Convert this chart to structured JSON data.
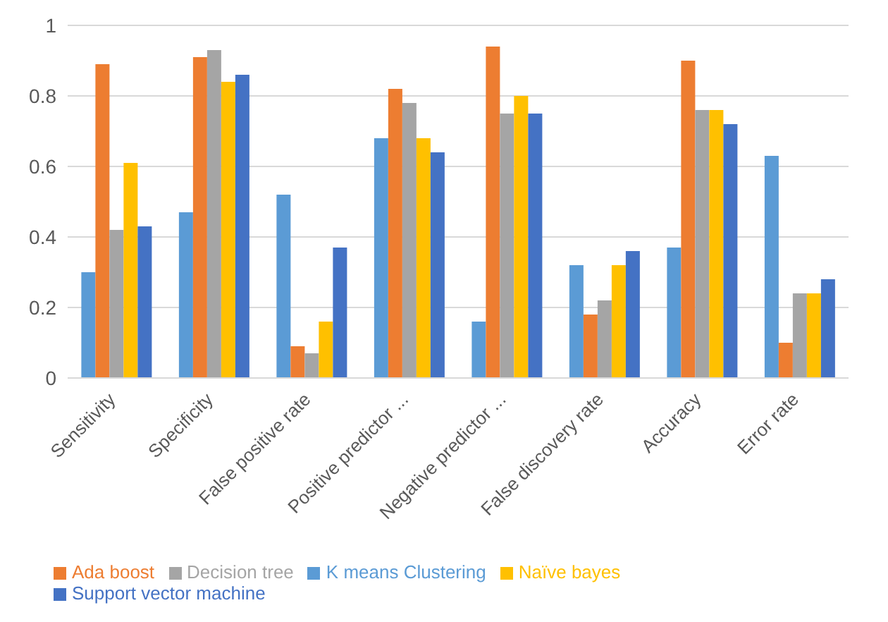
{
  "chart_data": {
    "type": "bar",
    "categories": [
      "Sensitivity",
      "Specificity",
      "False positive rate",
      "Positive predictor ...",
      "Negative predictor ...",
      "False discovery rate",
      "Accuracy",
      "Error rate"
    ],
    "series": [
      {
        "name": "K means Clustering",
        "color": "#5b9bd5",
        "values": [
          0.3,
          0.47,
          0.52,
          0.68,
          0.16,
          0.32,
          0.37,
          0.63
        ]
      },
      {
        "name": "Ada boost",
        "color": "#ed7d31",
        "values": [
          0.89,
          0.91,
          0.09,
          0.82,
          0.94,
          0.18,
          0.9,
          0.1
        ]
      },
      {
        "name": "Decision tree",
        "color": "#a5a5a5",
        "values": [
          0.42,
          0.93,
          0.07,
          0.78,
          0.75,
          0.22,
          0.76,
          0.24
        ]
      },
      {
        "name": "Naïve bayes",
        "color": "#ffc000",
        "values": [
          0.61,
          0.84,
          0.16,
          0.68,
          0.8,
          0.32,
          0.76,
          0.24
        ]
      },
      {
        "name": "Support vector machine",
        "color": "#4472c4",
        "values": [
          0.43,
          0.86,
          0.37,
          0.64,
          0.75,
          0.36,
          0.72,
          0.28
        ]
      }
    ],
    "ylim": [
      0,
      1
    ],
    "yticks": [
      0,
      0.2,
      0.4,
      0.6,
      0.8,
      1
    ],
    "grid": "y",
    "legend": "bottom"
  }
}
